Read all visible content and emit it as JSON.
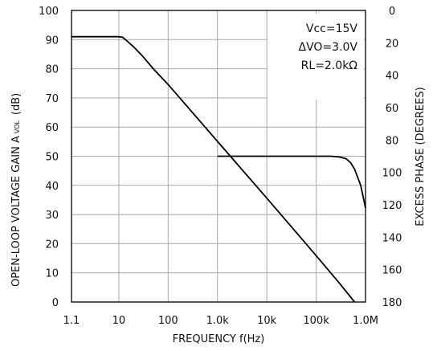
{
  "chart_data": {
    "type": "line",
    "title": "",
    "xlabel": "FREQUENCY f(Hz)",
    "ylabel": "OPEN-LOOP VOLTAGE GAIN A",
    "ylabel_subscript": "VOL",
    "ylabel_unit": "(dB)",
    "y2label": "EXCESS PHASE (DEGREES)",
    "x_scale": "log",
    "xlim": [
      1.1,
      1000000
    ],
    "ylim": [
      0,
      100
    ],
    "y2lim": [
      0,
      180
    ],
    "y2_inverted": true,
    "grid": true,
    "x_ticks": [
      {
        "value": 1.1,
        "label": "1.1"
      },
      {
        "value": 10,
        "label": "10"
      },
      {
        "value": 100,
        "label": "100"
      },
      {
        "value": 1000,
        "label": "1.0k"
      },
      {
        "value": 10000,
        "label": "10k"
      },
      {
        "value": 100000,
        "label": "100k"
      },
      {
        "value": 1000000,
        "label": "1.0M"
      }
    ],
    "y_ticks": [
      {
        "value": 0,
        "label": "0"
      },
      {
        "value": 10,
        "label": "10"
      },
      {
        "value": 20,
        "label": "20"
      },
      {
        "value": 30,
        "label": "30"
      },
      {
        "value": 40,
        "label": "40"
      },
      {
        "value": 50,
        "label": "50"
      },
      {
        "value": 60,
        "label": "60"
      },
      {
        "value": 70,
        "label": "70"
      },
      {
        "value": 80,
        "label": "80"
      },
      {
        "value": 90,
        "label": "90"
      },
      {
        "value": 100,
        "label": "100"
      }
    ],
    "y2_ticks": [
      {
        "value": 0,
        "label": "0"
      },
      {
        "value": 20,
        "label": "20"
      },
      {
        "value": 40,
        "label": "40"
      },
      {
        "value": 60,
        "label": "60"
      },
      {
        "value": 80,
        "label": "80"
      },
      {
        "value": 100,
        "label": "100"
      },
      {
        "value": 120,
        "label": "120"
      },
      {
        "value": 140,
        "label": "140"
      },
      {
        "value": 160,
        "label": "160"
      },
      {
        "value": 180,
        "label": "180"
      }
    ],
    "annotations": [
      "Vcc=15V",
      "ΔVO=3.0V",
      "RL=2.0kΩ"
    ],
    "series": [
      {
        "axis": "left",
        "x": [
          1.1,
          10,
          12,
          15,
          20,
          25,
          30,
          50,
          100,
          1000,
          10000,
          100000,
          300000,
          600000
        ],
        "y": [
          91,
          91,
          90.8,
          89.4,
          87.5,
          85.8,
          84.4,
          80,
          74.6,
          55.1,
          35.6,
          15.9,
          6.3,
          0
        ]
      },
      {
        "axis": "right",
        "x": [
          1000,
          10000,
          100000,
          200000,
          300000,
          400000,
          500000,
          600000,
          800000,
          1000000
        ],
        "y": [
          90,
          90,
          90,
          90,
          90.5,
          91.5,
          94,
          98,
          108,
          122
        ]
      }
    ]
  }
}
